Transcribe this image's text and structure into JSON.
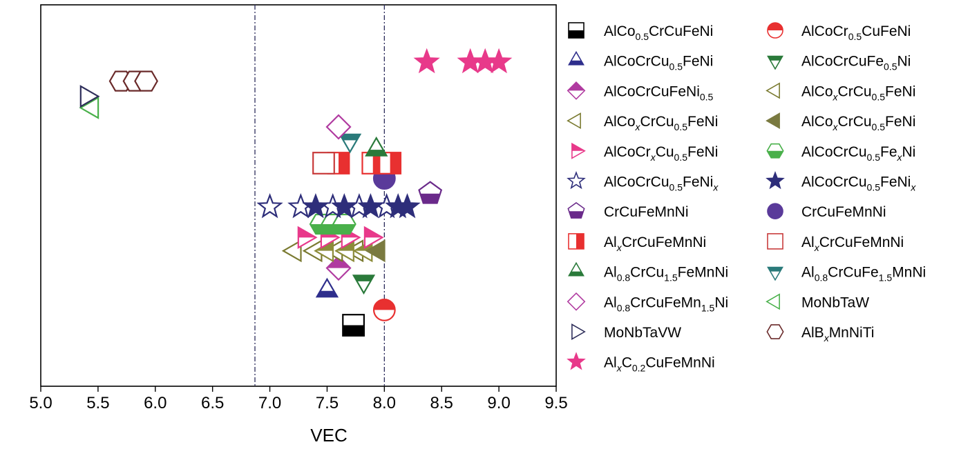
{
  "chart_data": {
    "type": "scatter",
    "title": "",
    "xlabel": "VEC",
    "ylabel": "",
    "xlim": [
      5.0,
      9.5
    ],
    "xticks": [
      "5.0",
      "5.5",
      "6.0",
      "6.5",
      "7.0",
      "7.5",
      "8.0",
      "8.5",
      "9.0",
      "9.5"
    ],
    "ylim": [
      0,
      100
    ],
    "grid": false,
    "legend_position": "right",
    "reference_lines_x": [
      6.87,
      8.0
    ],
    "series": [
      {
        "marker": "square-bottom",
        "color": "#000000",
        "fill": "half",
        "label": [
          {
            "t": "AlCo"
          },
          {
            "t": "0.5",
            "sub": true
          },
          {
            "t": "CrCuFeNi"
          }
        ],
        "points": [
          [
            7.73,
            16
          ]
        ]
      },
      {
        "marker": "circle-top",
        "color": "#e83030",
        "fill": "half",
        "label": [
          {
            "t": "AlCoCr"
          },
          {
            "t": "0.5",
            "sub": true
          },
          {
            "t": "CuFeNi"
          }
        ],
        "points": [
          [
            8.0,
            20
          ]
        ]
      },
      {
        "marker": "triangle-up",
        "color": "#2e2e8c",
        "fill": "half",
        "label": [
          {
            "t": "AlCoCrCu"
          },
          {
            "t": "0.5",
            "sub": true
          },
          {
            "t": "FeNi"
          }
        ],
        "points": [
          [
            7.5,
            25
          ]
        ]
      },
      {
        "marker": "triangle-down",
        "color": "#2a7a3a",
        "fill": "half",
        "label": [
          {
            "t": "AlCoCrCuFe"
          },
          {
            "t": "0.5",
            "sub": true
          },
          {
            "t": "Ni"
          }
        ],
        "points": [
          [
            7.82,
            27.5
          ]
        ]
      },
      {
        "marker": "diamond",
        "color": "#b03aa0",
        "fill": "half",
        "label": [
          {
            "t": "AlCoCrCuFeNi"
          },
          {
            "t": "0.5",
            "sub": true
          }
        ],
        "points": [
          [
            7.6,
            31
          ]
        ]
      },
      {
        "marker": "triangle-left",
        "color": "#7a7a30",
        "fill": "none",
        "label": [
          {
            "t": "AlCo"
          },
          {
            "t": "x",
            "sub": true,
            "italic": true
          },
          {
            "t": "CrCu"
          },
          {
            "t": "0.5",
            "sub": true
          },
          {
            "t": "FeNi"
          }
        ],
        "points": [
          [
            7.22,
            35.5
          ],
          [
            7.4,
            35.5
          ],
          [
            7.58,
            35.5
          ],
          [
            7.76,
            35.5
          ]
        ]
      },
      {
        "marker": "triangle-left",
        "color": "#8c8c3a",
        "fill": "half",
        "label": [
          {
            "t": "AlCo"
          },
          {
            "t": "x",
            "sub": true,
            "italic": true
          },
          {
            "t": "CrCu"
          },
          {
            "t": "0.5",
            "sub": true
          },
          {
            "t": "FeNi"
          }
        ],
        "points": [
          [
            7.5,
            35.5
          ],
          [
            7.68,
            35.5
          ],
          [
            7.84,
            35.5
          ]
        ]
      },
      {
        "marker": "triangle-left",
        "color": "#7a7a40",
        "fill": "full",
        "label": [
          {
            "t": "AlCo"
          },
          {
            "t": "x",
            "sub": true,
            "italic": true
          },
          {
            "t": "CrCu"
          },
          {
            "t": "0.5",
            "sub": true
          },
          {
            "t": "FeNi"
          }
        ],
        "points": [
          [
            7.95,
            35.5
          ]
        ]
      },
      {
        "marker": "triangle-right",
        "color": "#e8398a",
        "fill": "half",
        "label": [
          {
            "t": "AlCoCr"
          },
          {
            "t": "x",
            "sub": true,
            "italic": true
          },
          {
            "t": "Cu"
          },
          {
            "t": "0.5",
            "sub": true
          },
          {
            "t": "FeNi"
          }
        ],
        "points": [
          [
            7.3,
            39
          ],
          [
            7.5,
            39
          ],
          [
            7.68,
            39
          ],
          [
            7.88,
            39
          ]
        ]
      },
      {
        "marker": "hexagon-bottom",
        "color": "#49b04a",
        "fill": "half",
        "label": [
          {
            "t": "AlCoCrCu"
          },
          {
            "t": "0.5",
            "sub": true
          },
          {
            "t": "Fe"
          },
          {
            "t": "x",
            "sub": true,
            "italic": true
          },
          {
            "t": "Ni"
          }
        ],
        "points": [
          [
            7.45,
            42.5
          ],
          [
            7.55,
            42.5
          ],
          [
            7.65,
            42.5
          ]
        ]
      },
      {
        "marker": "star",
        "color": "#2e2e7a",
        "fill": "none",
        "label": [
          {
            "t": "AlCoCrCu"
          },
          {
            "t": "0.5",
            "sub": true
          },
          {
            "t": "FeNi"
          },
          {
            "t": "x",
            "sub": true,
            "italic": true
          }
        ],
        "points": [
          [
            7.0,
            47
          ],
          [
            7.27,
            47
          ],
          [
            7.55,
            47
          ],
          [
            7.78,
            47
          ],
          [
            8.02,
            47
          ]
        ]
      },
      {
        "marker": "star",
        "color": "#2e2e7a",
        "fill": "full",
        "label": [
          {
            "t": "AlCoCrCu"
          },
          {
            "t": "0.5",
            "sub": true
          },
          {
            "t": "FeNi"
          },
          {
            "t": "x",
            "sub": true,
            "italic": true
          }
        ],
        "points": [
          [
            7.4,
            47
          ],
          [
            7.65,
            47
          ],
          [
            7.88,
            47
          ],
          [
            8.12,
            47
          ],
          [
            8.2,
            47
          ]
        ]
      },
      {
        "marker": "pentagon-bottom",
        "color": "#6a2a8a",
        "fill": "half",
        "label": [
          {
            "t": "CrCuFeMnNi"
          }
        ],
        "points": [
          [
            8.4,
            50.5
          ]
        ]
      },
      {
        "marker": "circle",
        "color": "#5a3a9a",
        "fill": "full",
        "label": [
          {
            "t": "CrCuFeMnNi"
          }
        ],
        "points": [
          [
            8.0,
            54.5
          ]
        ]
      },
      {
        "marker": "square-right",
        "color": "#e83030",
        "fill": "half",
        "label": [
          {
            "t": "Al"
          },
          {
            "t": "x",
            "sub": true,
            "italic": true
          },
          {
            "t": "CrCuFeMnNi"
          }
        ],
        "points": [
          [
            7.6,
            58.5
          ],
          [
            7.9,
            58.5
          ],
          [
            8.05,
            58.5
          ]
        ]
      },
      {
        "marker": "square",
        "color": "#c83a3a",
        "fill": "none",
        "label": [
          {
            "t": "Al"
          },
          {
            "t": "x",
            "sub": true,
            "italic": true
          },
          {
            "t": "CrCuFeMnNi"
          }
        ],
        "points": [
          [
            7.47,
            58.5
          ]
        ]
      },
      {
        "marker": "triangle-up",
        "color": "#2a7a3a",
        "fill": "half",
        "label": [
          {
            "t": "Al"
          },
          {
            "t": "0.8",
            "sub": true
          },
          {
            "t": "CrCu"
          },
          {
            "t": "1.5",
            "sub": true
          },
          {
            "t": "FeMnNi"
          }
        ],
        "points": [
          [
            7.93,
            62
          ]
        ]
      },
      {
        "marker": "triangle-down",
        "color": "#2a7a7a",
        "fill": "half",
        "label": [
          {
            "t": "Al"
          },
          {
            "t": "0.8",
            "sub": true
          },
          {
            "t": "CrCuFe"
          },
          {
            "t": "1.5",
            "sub": true
          },
          {
            "t": "MnNi"
          }
        ],
        "points": [
          [
            7.7,
            64.5
          ]
        ]
      },
      {
        "marker": "diamond",
        "color": "#b03aa0",
        "fill": "none",
        "label": [
          {
            "t": "Al"
          },
          {
            "t": "0.8",
            "sub": true
          },
          {
            "t": "CrCuFeMn"
          },
          {
            "t": "1.5",
            "sub": true
          },
          {
            "t": "Ni"
          }
        ],
        "points": [
          [
            7.6,
            68
          ]
        ]
      },
      {
        "marker": "triangle-left",
        "color": "#49b04a",
        "fill": "none",
        "label": [
          {
            "t": "MoNbTaW"
          }
        ],
        "points": [
          [
            5.45,
            73
          ]
        ]
      },
      {
        "marker": "triangle-right",
        "color": "#2e2e5a",
        "fill": "none",
        "label": [
          {
            "t": "MoNbTaVW"
          }
        ],
        "points": [
          [
            5.4,
            76
          ]
        ]
      },
      {
        "marker": "hexagon",
        "color": "#6a2a2a",
        "fill": "none",
        "label": [
          {
            "t": "AlB"
          },
          {
            "t": "x",
            "sub": true,
            "italic": true
          },
          {
            "t": "MnNiTi"
          }
        ],
        "points": [
          [
            5.7,
            80
          ],
          [
            5.82,
            80
          ],
          [
            5.92,
            80
          ]
        ]
      },
      {
        "marker": "star",
        "color": "#e8398a",
        "fill": "full",
        "label": [
          {
            "t": "Al"
          },
          {
            "t": "x",
            "sub": true,
            "italic": true
          },
          {
            "t": "C"
          },
          {
            "t": "0.2",
            "sub": true
          },
          {
            "t": "CuFeMnNi"
          }
        ],
        "points": [
          [
            8.37,
            85
          ],
          [
            8.75,
            85
          ],
          [
            8.88,
            85
          ],
          [
            9.0,
            85
          ]
        ]
      }
    ],
    "legend_order": [
      [
        0,
        1
      ],
      [
        2,
        3
      ],
      [
        4,
        5
      ],
      [
        5,
        7
      ],
      [
        8,
        9
      ],
      [
        10,
        11
      ],
      [
        12,
        13
      ],
      [
        14,
        15
      ],
      [
        16,
        17
      ],
      [
        18,
        19
      ],
      [
        20,
        21
      ],
      [
        22,
        null
      ]
    ]
  }
}
